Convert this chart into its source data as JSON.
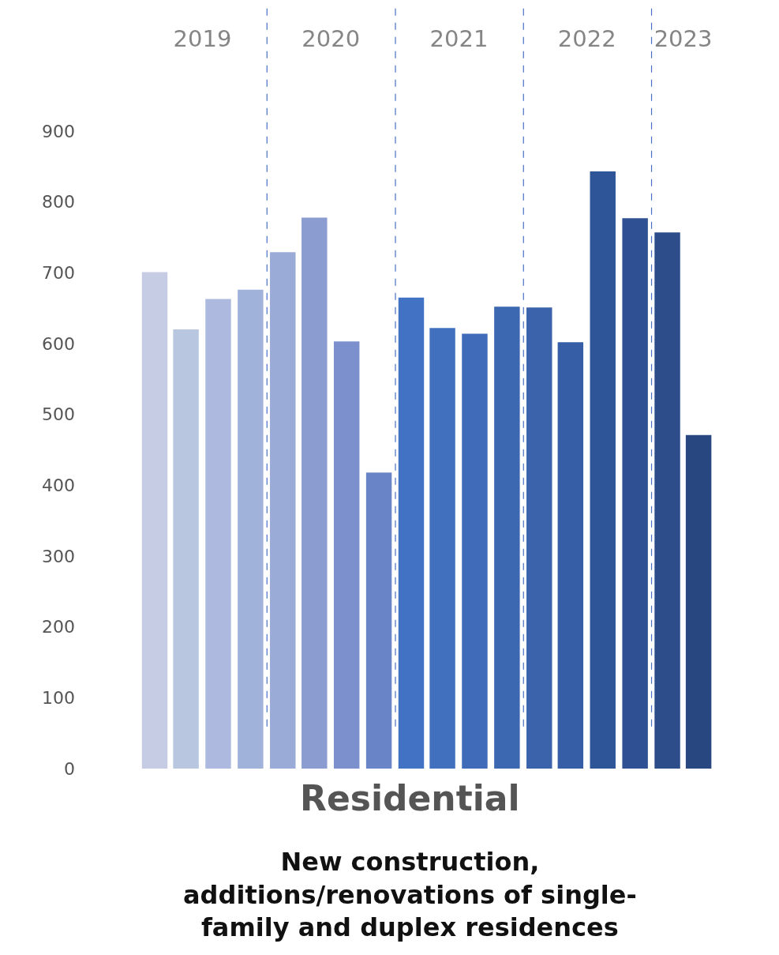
{
  "chart_data": {
    "type": "bar",
    "xlabel": "Residential",
    "x": [
      "2019-02-15",
      "2019-05-15",
      "2019-08-15",
      "2019-11-15",
      "2020-02-15",
      "2020-05-15",
      "2020-08-15",
      "2020-11-15",
      "2021-02-15",
      "2021-05-15",
      "2021-08-15",
      "2021-11-15",
      "2022-02-15",
      "2022-05-15",
      "2022-08-15",
      "2022-11-15",
      "2023-02-15",
      "2023-05-15"
    ],
    "values": [
      701,
      620,
      663,
      676,
      729,
      778,
      603,
      418,
      665,
      622,
      614,
      652,
      651,
      602,
      843,
      777,
      757,
      471
    ],
    "colors": [
      "#c5cce3",
      "#b9c6e0",
      "#adb9de",
      "#a0b2da",
      "#9aabd8",
      "#8a9cd0",
      "#7b90cc",
      "#6a84c8",
      "#4272c4",
      "#4170be",
      "#3f6bb8",
      "#3c68b2",
      "#3a63ab",
      "#365ea6",
      "#2e5597",
      "#2f5193",
      "#2d4d8a",
      "#284780"
    ],
    "ylim": [
      0,
      900
    ],
    "yticks": [
      0,
      100,
      200,
      300,
      400,
      500,
      600,
      700,
      800,
      900
    ],
    "xlim": [
      "2019-01-01",
      "2023-07-01"
    ],
    "xticks": [
      {
        "value": "2019-07-01",
        "label": "2019"
      },
      {
        "value": "2020-07-01",
        "label": "2020"
      },
      {
        "value": "2021-07-01",
        "label": "2021"
      },
      {
        "value": "2022-07-01",
        "label": "2022"
      },
      {
        "value": "2023-04-01",
        "label": "2023"
      }
    ],
    "ref_lines": [
      {
        "axis": "x",
        "value": "2020-01-01",
        "color": "#4a6fc4",
        "line_style": "dashed"
      },
      {
        "axis": "x",
        "value": "2021-01-01",
        "color": "#4a6fc4",
        "line_style": "dashed"
      },
      {
        "axis": "x",
        "value": "2022-01-01",
        "color": "#4a6fc4",
        "line_style": "dashed"
      },
      {
        "axis": "x",
        "value": "2023-01-01",
        "color": "#4a6fc4",
        "line_style": "dashed"
      }
    ],
    "annotations": [
      "New construction,\nadditions/renovations of single-\nfamily and duplex residences"
    ],
    "grid": false
  }
}
